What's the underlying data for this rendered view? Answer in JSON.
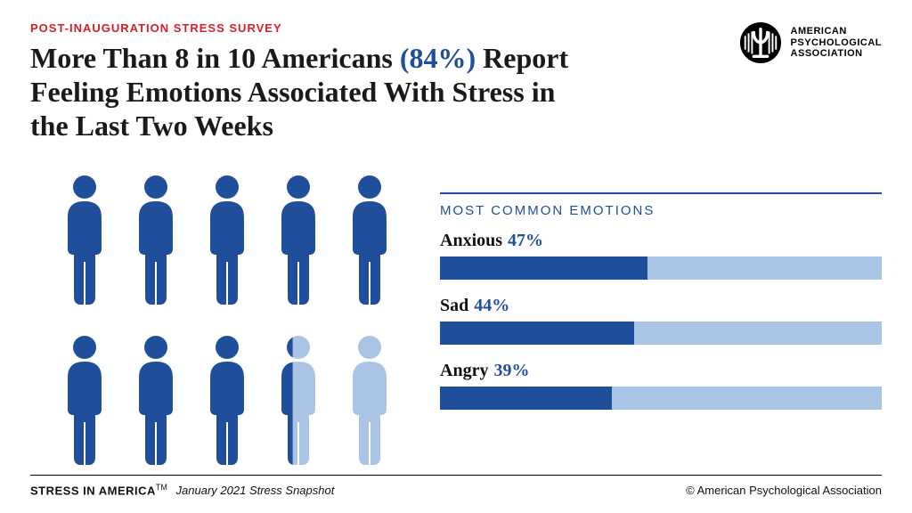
{
  "colors": {
    "accent_red": "#d5202a",
    "primary_blue": "#1f4e9b",
    "light_blue": "#a9c4e4",
    "text_dark": "#1a1a1a",
    "background": "#ffffff"
  },
  "eyebrow": "POST-INAUGURATION STRESS SURVEY",
  "headline": {
    "part1": "More Than 8 in 10 Americans ",
    "accent": "(84%)",
    "part2": " Report Feeling Emotions Associated With Stress in the Last Two Weeks"
  },
  "logo": {
    "line1": "AMERICAN",
    "line2": "PSYCHOLOGICAL",
    "line3": "ASSOCIATION"
  },
  "pictogram": {
    "total": 10,
    "highlighted": 8.4,
    "rows": 2,
    "cols": 5,
    "fill_color": "#1f4e9b",
    "empty_color": "#a9c4e4"
  },
  "bars": {
    "header": "MOST COMMON EMOTIONS",
    "header_color": "#1f4e9b",
    "track_color": "#a9c4e4",
    "fill_color": "#1f4e9b",
    "value_color": "#1f4e9b",
    "items": [
      {
        "label": "Anxious",
        "value": 47,
        "display": "47%"
      },
      {
        "label": "Sad",
        "value": 44,
        "display": "44%"
      },
      {
        "label": "Angry",
        "value": 39,
        "display": "39%"
      }
    ]
  },
  "footer": {
    "brand": "STRESS IN AMERICA",
    "tm": "TM",
    "snapshot": "January 2021 Stress Snapshot",
    "copyright": "© American Psychological Association"
  }
}
